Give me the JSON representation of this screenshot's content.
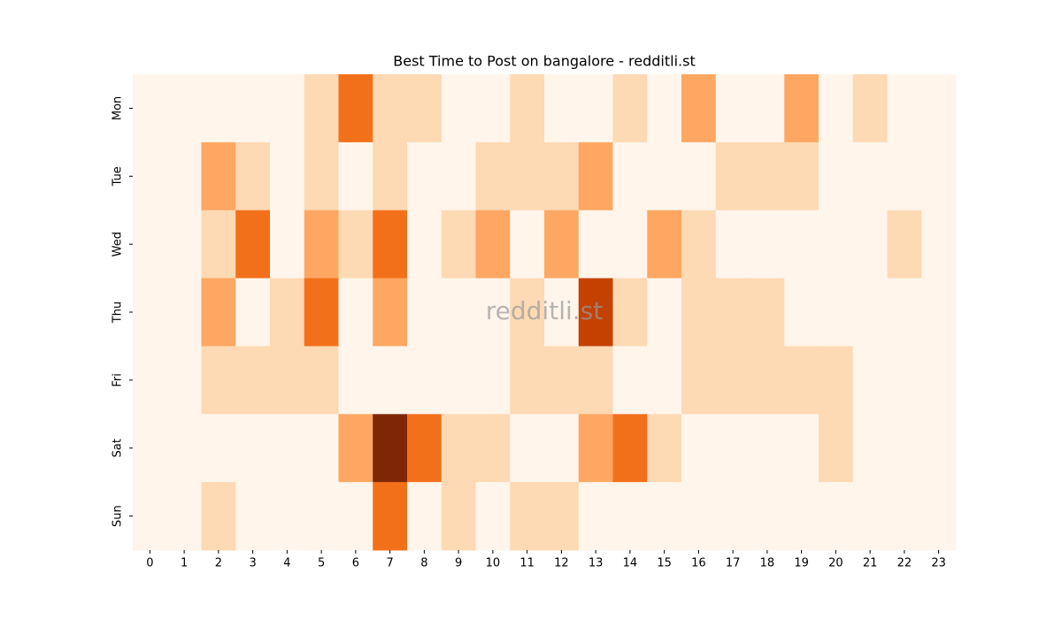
{
  "chart_data": {
    "type": "heatmap",
    "title": "Best Time to Post on bangalore - redditli.st",
    "watermark": "redditli.st",
    "x": [
      0,
      1,
      2,
      3,
      4,
      5,
      6,
      7,
      8,
      9,
      10,
      11,
      12,
      13,
      14,
      15,
      16,
      17,
      18,
      19,
      20,
      21,
      22,
      23
    ],
    "y": [
      "Mon",
      "Tue",
      "Wed",
      "Thu",
      "Fri",
      "Sat",
      "Sun"
    ],
    "values": [
      [
        0,
        0,
        0,
        0,
        0,
        1,
        3,
        1,
        1,
        0,
        0,
        1,
        0,
        0,
        1,
        0,
        2,
        0,
        0,
        2,
        0,
        1,
        0,
        0
      ],
      [
        0,
        0,
        2,
        1,
        0,
        1,
        0,
        1,
        0,
        0,
        1,
        1,
        1,
        2,
        0,
        0,
        0,
        1,
        1,
        1,
        0,
        0,
        0,
        0
      ],
      [
        0,
        0,
        1,
        3,
        0,
        2,
        1,
        3,
        0,
        1,
        2,
        0,
        2,
        0,
        0,
        2,
        1,
        0,
        0,
        0,
        0,
        0,
        1,
        0
      ],
      [
        0,
        0,
        2,
        0,
        1,
        3,
        0,
        2,
        0,
        0,
        0,
        1,
        0,
        4,
        1,
        0,
        1,
        1,
        1,
        0,
        0,
        0,
        0,
        0
      ],
      [
        0,
        0,
        1,
        1,
        1,
        1,
        0,
        0,
        0,
        0,
        0,
        1,
        1,
        1,
        0,
        0,
        1,
        1,
        1,
        1,
        1,
        0,
        0,
        0
      ],
      [
        0,
        0,
        0,
        0,
        0,
        0,
        2,
        5,
        3,
        1,
        1,
        0,
        0,
        2,
        3,
        1,
        0,
        0,
        0,
        0,
        1,
        0,
        0,
        0
      ],
      [
        0,
        0,
        1,
        0,
        0,
        0,
        0,
        3,
        0,
        1,
        0,
        1,
        1,
        0,
        0,
        0,
        0,
        0,
        0,
        0,
        0,
        0,
        0,
        0
      ]
    ],
    "colormap": [
      "#fff5eb",
      "#fdd9b4",
      "#fda762",
      "#f3701b",
      "#c54102",
      "#7f2704"
    ]
  }
}
